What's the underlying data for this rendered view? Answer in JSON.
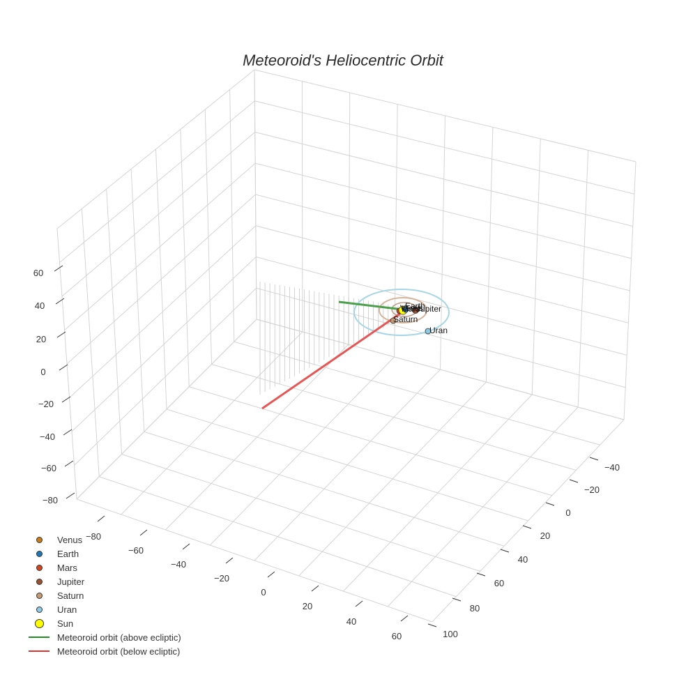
{
  "chart_data": {
    "type": "scatter3d",
    "title": "Meteoroid's Heliocentric Orbit",
    "axes": {
      "x": {
        "ticks": [
          -80,
          -60,
          -40,
          -20,
          0,
          20,
          40,
          60
        ]
      },
      "y": {
        "ticks": [
          -40,
          -20,
          0,
          20,
          40,
          60,
          80,
          100
        ]
      },
      "z": {
        "ticks": [
          -80,
          -60,
          -40,
          -20,
          0,
          20,
          40,
          60
        ]
      }
    },
    "grid": true,
    "legend_position": "bottom-left",
    "series": [
      {
        "name": "Venus",
        "kind": "marker",
        "color": "#c87f1a",
        "label": "Venus"
      },
      {
        "name": "Earth",
        "kind": "marker",
        "color": "#1f77b4",
        "label": "Earth"
      },
      {
        "name": "Mars",
        "kind": "marker",
        "color": "#d2451e",
        "label": "Mars"
      },
      {
        "name": "Jupiter",
        "kind": "marker",
        "color": "#9b5030",
        "label": "Jupiter"
      },
      {
        "name": "Saturn",
        "kind": "marker",
        "color": "#c49a72",
        "label": "Saturn"
      },
      {
        "name": "Uran",
        "kind": "marker",
        "color": "#8ecae6",
        "label": "Uran"
      },
      {
        "name": "Sun",
        "kind": "marker",
        "color": "#ffff00",
        "label": "Sun"
      },
      {
        "name": "Meteoroid orbit (above ecliptic)",
        "kind": "line",
        "color": "#2ca02c"
      },
      {
        "name": "Meteoroid orbit (below ecliptic)",
        "kind": "line",
        "color": "#e8413c"
      }
    ]
  },
  "title": "Meteoroid's Heliocentric Orbit",
  "z_ticks": [
    "60",
    "40",
    "20",
    "0",
    "−20",
    "−40",
    "−60",
    "−80"
  ],
  "x_ticks": [
    "−80",
    "−60",
    "−40",
    "−20",
    "0",
    "20",
    "40",
    "60"
  ],
  "y_ticks": [
    "−40",
    "−20",
    "0",
    "20",
    "40",
    "60",
    "80",
    "100"
  ],
  "planet_labels": {
    "venus": "Venus",
    "earth": "Earth",
    "mars": "Mars",
    "jupiter": "Jupiter",
    "saturn": "Saturn",
    "uran": "Uran"
  },
  "legend": [
    {
      "label": "Venus",
      "color": "#c87f1a",
      "kind": "dot",
      "size": 9
    },
    {
      "label": "Earth",
      "color": "#1f77b4",
      "kind": "dot",
      "size": 9
    },
    {
      "label": "Mars",
      "color": "#d2451e",
      "kind": "dot",
      "size": 9
    },
    {
      "label": "Jupiter",
      "color": "#9b5030",
      "kind": "dot",
      "size": 9
    },
    {
      "label": "Saturn",
      "color": "#c49a72",
      "kind": "dot",
      "size": 9
    },
    {
      "label": "Uran",
      "color": "#8ecae6",
      "kind": "dot",
      "size": 9
    },
    {
      "label": "Sun",
      "color": "#ffff00",
      "kind": "dot",
      "size": 13
    },
    {
      "label": "Meteoroid orbit (above ecliptic)",
      "color": "#1f8f1f",
      "kind": "line"
    },
    {
      "label": "Meteoroid orbit (below ecliptic)",
      "color": "#e03030",
      "kind": "line"
    }
  ]
}
